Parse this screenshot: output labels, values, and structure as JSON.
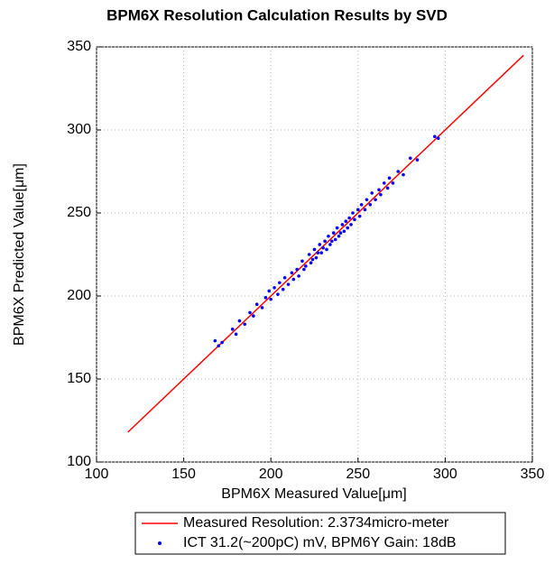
{
  "chart_data": {
    "type": "scatter",
    "title": "BPM6X Resolution Calculation Results by SVD",
    "xlabel": "BPM6X Measured Value[μm]",
    "ylabel": "BPM6X Predicted Value[μm]",
    "xlim": [
      100,
      350
    ],
    "ylim": [
      100,
      350
    ],
    "xticks": [
      100,
      150,
      200,
      250,
      300,
      350
    ],
    "yticks": [
      100,
      150,
      200,
      250,
      300,
      350
    ],
    "grid": true,
    "legend": "bottom",
    "series": [
      {
        "name": "Measured Resolution: 2.3734micro-meter",
        "type": "line",
        "color": "#ff0000",
        "x": [
          118,
          345
        ],
        "values": [
          118,
          345
        ]
      },
      {
        "name": "ICT 31.2(~200pC) mV, BPM6Y Gain: 18dB",
        "type": "scatter",
        "color": "#0000ff",
        "x": [
          168,
          170,
          172,
          178,
          180,
          182,
          185,
          188,
          190,
          192,
          195,
          197,
          199,
          200,
          202,
          204,
          205,
          207,
          208,
          210,
          212,
          213,
          215,
          216,
          218,
          219,
          220,
          222,
          223,
          224,
          225,
          226,
          227,
          228,
          229,
          230,
          231,
          232,
          233,
          234,
          235,
          236,
          237,
          238,
          239,
          240,
          241,
          242,
          243,
          244,
          245,
          246,
          247,
          248,
          250,
          251,
          252,
          254,
          255,
          257,
          258,
          260,
          262,
          263,
          265,
          267,
          268,
          270,
          273,
          276,
          280,
          284,
          294,
          296
        ],
        "values": [
          173,
          170,
          172,
          180,
          177,
          185,
          183,
          190,
          188,
          195,
          193,
          199,
          203,
          198,
          205,
          201,
          208,
          204,
          211,
          207,
          214,
          210,
          216,
          212,
          221,
          216,
          218,
          225,
          220,
          222,
          228,
          223,
          226,
          231,
          226,
          229,
          233,
          228,
          236,
          231,
          233,
          238,
          234,
          241,
          236,
          238,
          243,
          239,
          245,
          241,
          247,
          243,
          250,
          246,
          252,
          248,
          255,
          252,
          258,
          255,
          262,
          258,
          264,
          261,
          268,
          265,
          271,
          268,
          275,
          273,
          283,
          282,
          296,
          295
        ]
      }
    ]
  }
}
